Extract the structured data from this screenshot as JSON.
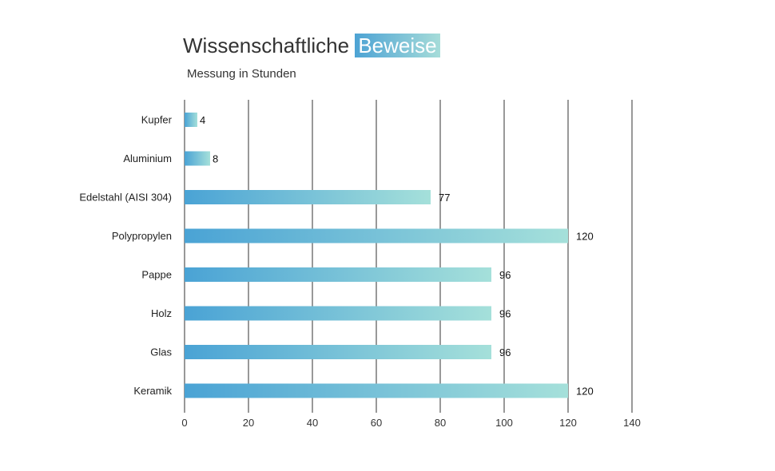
{
  "chart_data": {
    "type": "bar",
    "orientation": "horizontal",
    "title": "Wissenschaftliche",
    "title_highlight": "Beweise",
    "subtitle": "Messung in Stunden",
    "categories": [
      "Kupfer",
      "Aluminium",
      "Edelstahl (AISI 304)",
      "Polypropylen",
      "Pappe",
      "Holz",
      "Glas",
      "Keramik"
    ],
    "values": [
      4,
      8,
      77,
      120,
      96,
      96,
      96,
      120
    ],
    "xlim": [
      0,
      140
    ],
    "xticks": [
      0,
      20,
      40,
      60,
      80,
      100,
      120,
      140
    ],
    "grid": true,
    "xlabel": "",
    "ylabel": "",
    "colors": {
      "gradient_start": "#4aa3d5",
      "gradient_end": "#a5e0da",
      "grid": "#555555"
    }
  }
}
